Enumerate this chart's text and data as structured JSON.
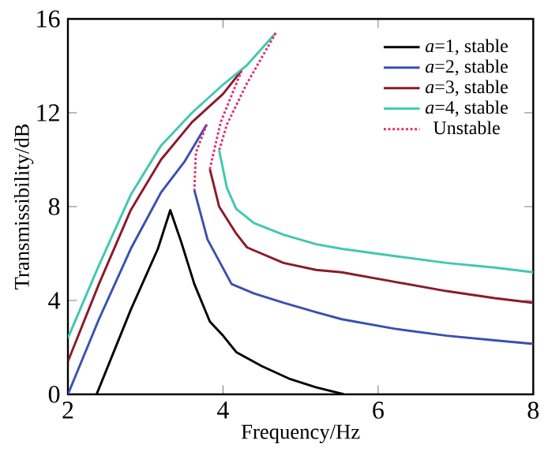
{
  "chart_data": {
    "type": "line",
    "xlabel": "Frequency/Hz",
    "ylabel": "Transmissibility/dB",
    "xlim": [
      2,
      8
    ],
    "ylim": [
      0,
      16
    ],
    "xticks": [
      2,
      4,
      6,
      8
    ],
    "yticks": [
      0,
      4,
      8,
      12,
      16
    ],
    "legend": "top right",
    "marker": "none",
    "grid": false,
    "series": [
      {
        "name": "*a*=1, stable",
        "color": "#000000",
        "line_style": "solid",
        "x": [
          2.37,
          2.81,
          3.16,
          3.32,
          3.46,
          3.63,
          3.83,
          4.0,
          4.17,
          4.5,
          4.85,
          5.2,
          5.56
        ],
        "values": [
          0,
          3.6,
          6.2,
          7.85,
          6.5,
          4.7,
          3.1,
          2.5,
          1.8,
          1.2,
          0.67,
          0.3,
          0
        ]
      },
      {
        "name": "*a*=2, stable",
        "color": "#3a50b0",
        "line_style": "solid",
        "x": [
          2.0,
          2.4,
          2.81,
          3.2,
          3.5,
          3.79,
          null,
          3.63,
          3.8,
          4.11,
          4.4,
          4.78,
          5.2,
          5.53,
          6.2,
          6.88,
          7.5,
          8.0
        ],
        "values": [
          0,
          3.2,
          6.2,
          8.6,
          9.9,
          11.5,
          null,
          8.7,
          6.6,
          4.7,
          4.3,
          3.9,
          3.5,
          3.2,
          2.8,
          2.5,
          2.3,
          2.15
        ]
      },
      {
        "name": "*a*=3, stable",
        "color": "#8b1a2a",
        "line_style": "solid",
        "x": [
          2.0,
          2.4,
          2.81,
          3.2,
          3.6,
          4.0,
          4.24,
          null,
          3.83,
          3.95,
          4.17,
          4.31,
          4.78,
          5.2,
          5.53,
          6.2,
          6.88,
          7.5,
          8.0
        ],
        "values": [
          1.4,
          4.7,
          7.85,
          10.0,
          11.6,
          12.8,
          13.8,
          null,
          9.6,
          8.0,
          6.85,
          6.26,
          5.6,
          5.3,
          5.2,
          4.8,
          4.4,
          4.1,
          3.9
        ]
      },
      {
        "name": "*a*=4, stable",
        "color": "#40c8b0",
        "line_style": "solid",
        "x": [
          2.0,
          2.4,
          2.81,
          3.2,
          3.6,
          4.0,
          4.3,
          4.68,
          null,
          3.95,
          4.05,
          4.17,
          4.4,
          4.78,
          5.2,
          5.53,
          6.2,
          6.88,
          7.5,
          8.0
        ],
        "values": [
          2.4,
          5.5,
          8.5,
          10.6,
          12.0,
          13.2,
          14.0,
          15.4,
          null,
          10.4,
          8.8,
          7.9,
          7.3,
          6.8,
          6.4,
          6.2,
          5.9,
          5.6,
          5.4,
          5.2
        ]
      },
      {
        "name": "Unstable",
        "color": "#e0306a",
        "line_style": "dotted",
        "x": [
          3.79,
          3.65,
          3.63,
          null,
          4.24,
          3.97,
          3.83,
          null,
          4.68,
          4.3,
          4.05,
          3.95
        ],
        "values": [
          11.5,
          10.3,
          8.7,
          null,
          13.8,
          11.6,
          9.6,
          null,
          15.4,
          13.2,
          11.5,
          10.4
        ]
      }
    ]
  }
}
